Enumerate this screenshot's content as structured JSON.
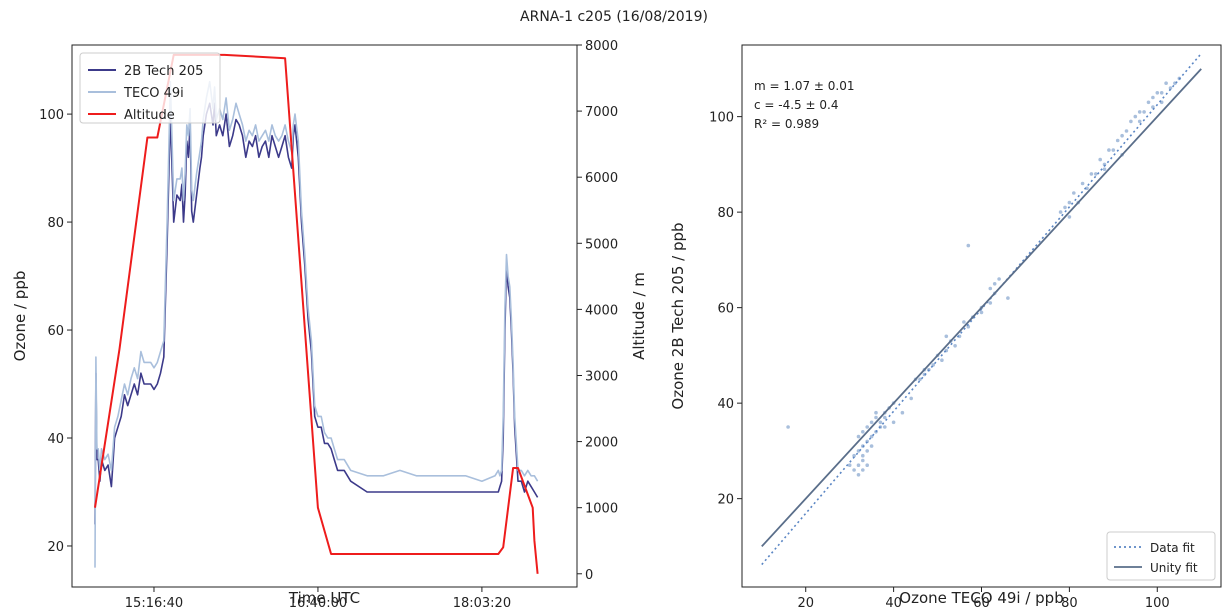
{
  "figure": {
    "suptitle": "ARNA-1 c205 (16/08/2019)"
  },
  "chart_data": [
    {
      "type": "line",
      "xlabel": "Time UTC",
      "ylabel": "Ozone / ppb",
      "y2label": "Altitude / m",
      "xticklabels": [
        "15:16:40",
        "16:40:00",
        "18:03:20"
      ],
      "xtick_seconds": [
        55000,
        60000,
        65000
      ],
      "xlim_seconds": [
        52500,
        67900
      ],
      "ylim": [
        12.4,
        112.8
      ],
      "y2lim": [
        -200,
        8000
      ],
      "yticks": [
        20,
        40,
        60,
        80,
        100
      ],
      "y2ticks": [
        0,
        1000,
        2000,
        3000,
        4000,
        5000,
        6000,
        7000,
        8000
      ],
      "legend": "upper left",
      "series": [
        {
          "name": "2B Tech 205",
          "color": "#3c3a8a",
          "axis": "left",
          "x_seconds": [
            53200,
            53230,
            53260,
            53300,
            53350,
            53400,
            53500,
            53600,
            53700,
            53800,
            53900,
            54000,
            54100,
            54200,
            54300,
            54400,
            54500,
            54600,
            54700,
            54800,
            54900,
            55000,
            55100,
            55200,
            55300,
            55400,
            55500,
            55600,
            55700,
            55800,
            55850,
            55900,
            55950,
            56000,
            56050,
            56100,
            56150,
            56200,
            56300,
            56400,
            56450,
            56500,
            56600,
            56700,
            56800,
            56850,
            56900,
            57000,
            57100,
            57200,
            57300,
            57400,
            57500,
            57600,
            57700,
            57800,
            57900,
            58000,
            58100,
            58200,
            58300,
            58400,
            58500,
            58600,
            58700,
            58800,
            58900,
            59000,
            59100,
            59200,
            59250,
            59300,
            59400,
            59500,
            59600,
            59700,
            59800,
            59900,
            60000,
            60100,
            60200,
            60300,
            60400,
            60500,
            60600,
            60800,
            61000,
            61500,
            62000,
            62500,
            63000,
            63500,
            64000,
            64500,
            65000,
            65400,
            65500,
            65550,
            65600,
            65650,
            65700,
            65750,
            65800,
            65850,
            65900,
            65950,
            66000,
            66100,
            66200,
            66300,
            66400,
            66500,
            66600,
            66700
          ],
          "values": [
            24,
            52,
            36,
            36,
            32,
            36,
            34,
            35,
            31,
            40,
            42,
            44,
            48,
            46,
            48,
            50,
            48,
            52,
            50,
            50,
            50,
            49,
            50,
            52,
            55,
            76,
            100,
            80,
            85,
            84,
            87,
            80,
            85,
            95,
            92,
            98,
            82,
            80,
            85,
            90,
            92,
            96,
            100,
            102,
            98,
            102,
            96,
            98,
            96,
            100,
            94,
            96,
            99,
            98,
            96,
            92,
            95,
            94,
            96,
            92,
            94,
            95,
            92,
            96,
            94,
            92,
            94,
            96,
            92,
            90,
            96,
            98,
            92,
            80,
            72,
            62,
            56,
            44,
            42,
            42,
            39,
            39,
            38,
            36,
            34,
            34,
            32,
            30,
            30,
            30,
            30,
            30,
            30,
            30,
            30,
            30,
            30,
            31,
            32,
            40,
            60,
            72,
            68,
            66,
            60,
            52,
            42,
            32,
            32,
            30,
            32,
            31,
            30,
            29
          ]
        },
        {
          "name": "TECO 49i",
          "color": "#a9bfdc",
          "axis": "left",
          "x_seconds": [
            53200,
            53230,
            53260,
            53300,
            53350,
            53400,
            53500,
            53600,
            53700,
            53800,
            53900,
            54000,
            54100,
            54200,
            54300,
            54400,
            54500,
            54600,
            54700,
            54800,
            54900,
            55000,
            55100,
            55200,
            55300,
            55400,
            55500,
            55600,
            55700,
            55800,
            55850,
            55900,
            55950,
            56000,
            56050,
            56100,
            56150,
            56200,
            56300,
            56400,
            56450,
            56500,
            56600,
            56700,
            56800,
            56850,
            56900,
            57000,
            57100,
            57200,
            57300,
            57400,
            57500,
            57600,
            57700,
            57800,
            57900,
            58000,
            58100,
            58200,
            58300,
            58400,
            58500,
            58600,
            58700,
            58800,
            58900,
            59000,
            59100,
            59200,
            59250,
            59300,
            59400,
            59500,
            59600,
            59700,
            59800,
            59900,
            60000,
            60100,
            60200,
            60300,
            60400,
            60500,
            60600,
            60800,
            61000,
            61500,
            62000,
            62500,
            63000,
            63500,
            64000,
            64500,
            65000,
            65400,
            65500,
            65550,
            65600,
            65650,
            65700,
            65750,
            65800,
            65850,
            65900,
            65950,
            66000,
            66100,
            66200,
            66300,
            66400,
            66500,
            66600,
            66700
          ],
          "values": [
            16,
            55,
            38,
            38,
            34,
            38,
            36,
            37,
            34,
            42,
            44,
            47,
            50,
            48,
            51,
            53,
            51,
            56,
            54,
            54,
            54,
            53,
            54,
            56,
            58,
            80,
            106,
            84,
            88,
            88,
            90,
            84,
            89,
            98,
            96,
            101,
            86,
            84,
            89,
            93,
            95,
            99,
            103,
            106,
            101,
            105,
            99,
            101,
            99,
            103,
            97,
            99,
            102,
            100,
            98,
            95,
            97,
            96,
            98,
            95,
            96,
            97,
            95,
            98,
            96,
            95,
            96,
            98,
            95,
            93,
            98,
            100,
            95,
            82,
            74,
            64,
            58,
            46,
            44,
            44,
            41,
            40,
            40,
            38,
            36,
            36,
            34,
            33,
            33,
            34,
            33,
            33,
            33,
            33,
            32,
            33,
            34,
            33,
            34,
            44,
            64,
            74,
            70,
            68,
            62,
            54,
            44,
            34,
            34,
            33,
            34,
            33,
            33,
            32
          ]
        },
        {
          "name": "Altitude",
          "color": "#ee1c1c",
          "axis": "right",
          "x_seconds": [
            53200,
            53950,
            54800,
            55100,
            55600,
            57150,
            59000,
            60000,
            60400,
            65500,
            65650,
            65950,
            66100,
            66550,
            66600,
            66700
          ],
          "values": [
            1000,
            3400,
            6600,
            6600,
            7850,
            7850,
            7800,
            1000,
            300,
            300,
            400,
            1600,
            1600,
            1000,
            500,
            0
          ]
        }
      ]
    },
    {
      "type": "scatter",
      "xlabel": "Ozone TECO 49i / ppb",
      "ylabel": "Ozone 2B Tech 205 / ppb",
      "xlim": [
        5.5,
        114.5
      ],
      "ylim": [
        1.5,
        115
      ],
      "xticks": [
        20,
        40,
        60,
        80,
        100
      ],
      "yticks": [
        20,
        40,
        60,
        80,
        100
      ],
      "annotations": [
        "m = 1.07 ± 0.01",
        "c = -4.5 ± 0.4",
        "R² = 0.989"
      ],
      "legend": "lower right",
      "fit_lines": [
        {
          "name": "Data fit",
          "color": "#5b86c4",
          "style": "dotted",
          "slope": 1.07,
          "intercept": -4.5,
          "x_range": [
            10,
            110
          ]
        },
        {
          "name": "Unity fit",
          "color": "#5a6e8a",
          "style": "solid",
          "slope": 1.0,
          "intercept": 0,
          "x_range": [
            10,
            110
          ]
        }
      ],
      "point_color": "#a9bfdc",
      "points": [
        [
          16,
          35
        ],
        [
          30,
          27
        ],
        [
          31,
          26
        ],
        [
          31,
          29
        ],
        [
          32,
          25
        ],
        [
          32,
          27
        ],
        [
          32,
          30
        ],
        [
          32,
          33
        ],
        [
          33,
          26
        ],
        [
          33,
          28
        ],
        [
          33,
          31
        ],
        [
          33,
          34
        ],
        [
          33,
          29
        ],
        [
          34,
          27
        ],
        [
          34,
          30
        ],
        [
          34,
          32
        ],
        [
          34,
          35
        ],
        [
          35,
          31
        ],
        [
          35,
          33
        ],
        [
          35,
          36
        ],
        [
          36,
          34
        ],
        [
          36,
          37
        ],
        [
          37,
          35
        ],
        [
          37,
          36
        ],
        [
          38,
          38
        ],
        [
          38,
          37
        ],
        [
          39,
          39
        ],
        [
          40,
          40
        ],
        [
          42,
          38
        ],
        [
          44,
          41
        ],
        [
          46,
          45
        ],
        [
          47,
          46
        ],
        [
          48,
          47
        ],
        [
          49,
          48
        ],
        [
          50,
          50
        ],
        [
          51,
          49
        ],
        [
          52,
          51
        ],
        [
          53,
          53
        ],
        [
          54,
          52
        ],
        [
          55,
          54
        ],
        [
          56,
          57
        ],
        [
          57,
          56
        ],
        [
          58,
          58
        ],
        [
          60,
          60
        ],
        [
          62,
          64
        ],
        [
          63,
          63
        ],
        [
          63,
          65
        ],
        [
          64,
          66
        ],
        [
          78,
          80
        ],
        [
          79,
          81
        ],
        [
          80,
          82
        ],
        [
          81,
          84
        ],
        [
          82,
          82
        ],
        [
          83,
          86
        ],
        [
          84,
          85
        ],
        [
          85,
          88
        ],
        [
          86,
          88
        ],
        [
          87,
          91
        ],
        [
          88,
          90
        ],
        [
          89,
          93
        ],
        [
          90,
          93
        ],
        [
          91,
          95
        ],
        [
          92,
          96
        ],
        [
          93,
          97
        ],
        [
          94,
          99
        ],
        [
          95,
          100
        ],
        [
          96,
          101
        ],
        [
          97,
          101
        ],
        [
          98,
          103
        ],
        [
          99,
          104
        ],
        [
          100,
          105
        ],
        [
          101,
          105
        ],
        [
          102,
          107
        ],
        [
          103,
          106
        ],
        [
          104,
          107
        ],
        [
          105,
          108
        ],
        [
          40,
          36
        ],
        [
          52,
          54
        ],
        [
          60,
          59
        ],
        [
          62,
          61
        ],
        [
          57,
          73
        ],
        [
          66,
          62
        ],
        [
          36,
          38
        ],
        [
          38,
          35
        ],
        [
          45,
          45
        ],
        [
          47,
          47
        ],
        [
          80,
          79
        ],
        [
          88,
          89
        ],
        [
          92,
          92
        ],
        [
          96,
          99
        ],
        [
          99,
          102
        ],
        [
          101,
          103
        ]
      ]
    }
  ]
}
